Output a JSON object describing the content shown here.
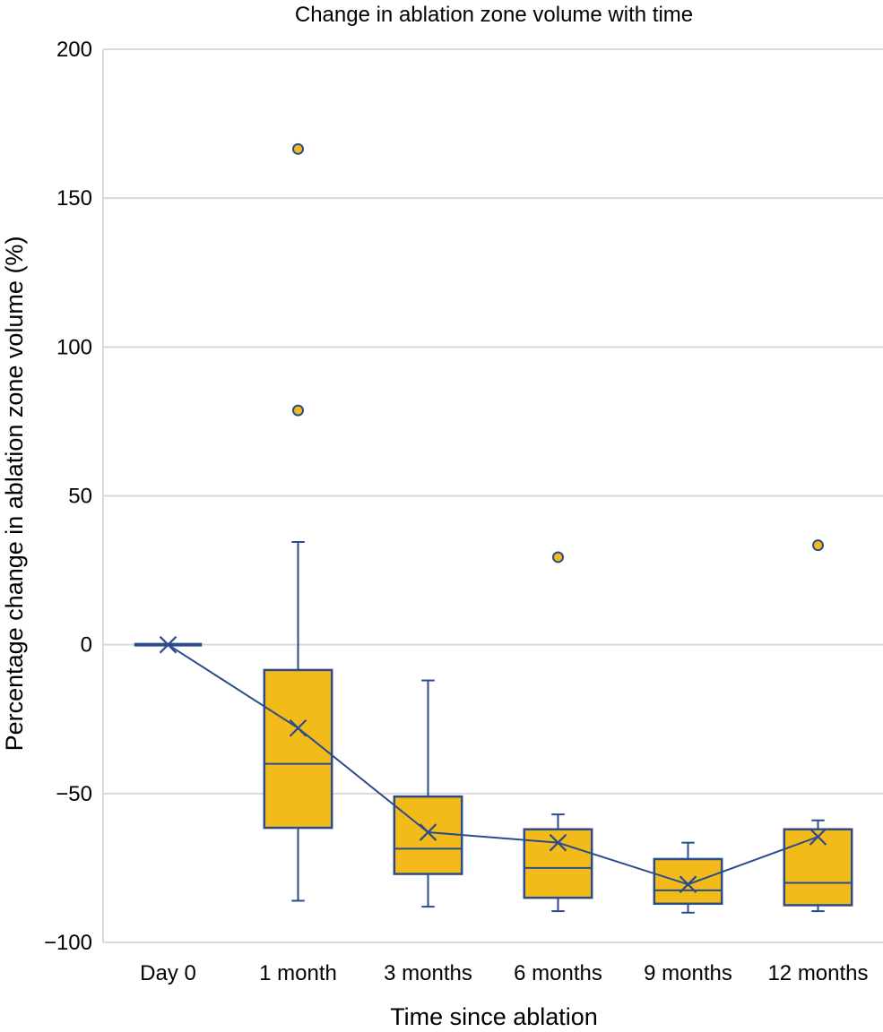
{
  "chart_data": {
    "type": "box",
    "title": "Change in ablation zone volume with time",
    "xlabel": "Time since ablation",
    "ylabel": "Percentage change in ablation zone volume (%)",
    "ylim": [
      -100,
      200
    ],
    "yticks": [
      200,
      150,
      100,
      50,
      0,
      -50,
      -100
    ],
    "ytick_labels": [
      "200",
      "150",
      "100",
      "50",
      "0",
      "−50",
      "−100"
    ],
    "grid": true,
    "categories": [
      "Day 0",
      "1 month",
      "3 months",
      "6 months",
      "9 months",
      "12 months"
    ],
    "boxes": [
      {
        "whisker_low": 0,
        "q1": 0,
        "median": 0,
        "q3": 0,
        "whisker_high": 0,
        "mean": 0,
        "outliers": []
      },
      {
        "whisker_low": -86,
        "q1": -61.5,
        "median": -40,
        "q3": -8.5,
        "whisker_high": 34.5,
        "mean": -28,
        "outliers": [
          166.5,
          78.7
        ]
      },
      {
        "whisker_low": -88,
        "q1": -77,
        "median": -68.5,
        "q3": -51,
        "whisker_high": -12,
        "mean": -63,
        "outliers": []
      },
      {
        "whisker_low": -89.5,
        "q1": -85,
        "median": -75,
        "q3": -62,
        "whisker_high": -57,
        "mean": -66.5,
        "outliers": [
          29.4
        ]
      },
      {
        "whisker_low": -90,
        "q1": -87,
        "median": -82.5,
        "q3": -72,
        "whisker_high": -66.5,
        "mean": -80.5,
        "outliers": []
      },
      {
        "whisker_low": -89.5,
        "q1": -87.5,
        "median": -80,
        "q3": -62,
        "whisker_high": -59,
        "mean": -64.5,
        "outliers": [
          33.4
        ]
      }
    ],
    "colors": {
      "box_fill": "#F2BB1A",
      "stroke": "#2B4C8C",
      "grid": "#D9D9D9"
    }
  }
}
